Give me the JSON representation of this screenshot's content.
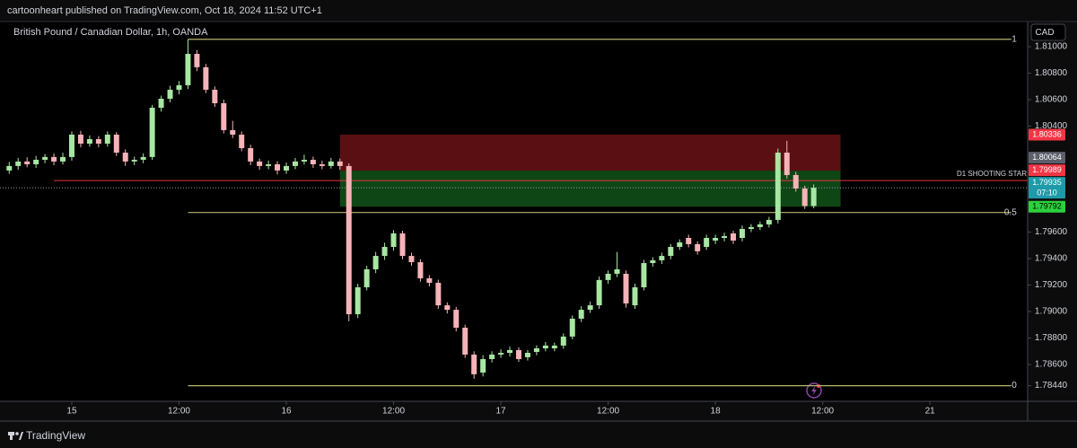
{
  "header": {
    "publisher": "cartoonheart published on TradingView.com, Oct 18, 2024 11:52 UTC+1",
    "currency_button": "CAD",
    "footer_brand": "TradingView"
  },
  "chart_data": {
    "type": "candlestick",
    "title": "British Pound / Canadian Dollar, 1h, OANDA",
    "up_color": "#a8e6a3",
    "down_color": "#f6b3b8",
    "x": [
      -7,
      -6,
      -5,
      -4,
      -3,
      -2,
      -1,
      0,
      1,
      2,
      3,
      4,
      5,
      6,
      7,
      8,
      9,
      10,
      11,
      12,
      13,
      14,
      15,
      16,
      17,
      18,
      19,
      20,
      21,
      22,
      23,
      24,
      25,
      26,
      27,
      28,
      29,
      30,
      31,
      32,
      33,
      34,
      35,
      36,
      37,
      38,
      39,
      40,
      41,
      42,
      43,
      44,
      45,
      46,
      47,
      48,
      49,
      50,
      51,
      52,
      53,
      54,
      55,
      56,
      57,
      58,
      59,
      60,
      61,
      62,
      63,
      64,
      65,
      66,
      67,
      68,
      69,
      70,
      71,
      72,
      73,
      74,
      75,
      76,
      77,
      78,
      79,
      80,
      81,
      82,
      83
    ],
    "open": [
      1.80065,
      1.80099,
      1.80133,
      1.80112,
      1.80146,
      1.80167,
      1.80133,
      1.80167,
      1.80336,
      1.80268,
      1.80302,
      1.80268,
      1.80336,
      1.802,
      1.80133,
      1.80146,
      1.80167,
      1.80539,
      1.80607,
      1.80675,
      1.80709,
      1.80946,
      1.80845,
      1.80675,
      1.80573,
      1.8037,
      1.80336,
      1.80234,
      1.80133,
      1.80099,
      1.80112,
      1.80065,
      1.80099,
      1.80133,
      1.80146,
      1.80112,
      1.80099,
      1.80133,
      1.80099,
      1.7898,
      1.79183,
      1.79319,
      1.7942,
      1.79488,
      1.7959,
      1.7942,
      1.79373,
      1.79251,
      1.79217,
      1.79047,
      1.79013,
      1.78878,
      1.78675,
      1.78539,
      1.78641,
      1.78675,
      1.78688,
      1.78709,
      1.78655,
      1.78695,
      1.78722,
      1.78722,
      1.78743,
      1.78811,
      1.78946,
      1.79013,
      1.79047,
      1.79238,
      1.79285,
      1.79285,
      1.79047,
      1.79183,
      1.79366,
      1.79387,
      1.7942,
      1.79488,
      1.79556,
      1.79509,
      1.79488,
      1.79536,
      1.79556,
      1.7959,
      1.79556,
      1.79624,
      1.79638,
      1.79658,
      1.79692,
      1.802,
      1.80031,
      1.79929,
      1.79797
    ],
    "high": [
      1.8013,
      1.8016,
      1.80165,
      1.80175,
      1.8019,
      1.80195,
      1.802,
      1.8036,
      1.80365,
      1.8033,
      1.80325,
      1.8036,
      1.80355,
      1.80225,
      1.8017,
      1.80195,
      1.8056,
      1.8063,
      1.80705,
      1.8074,
      1.81056,
      1.80975,
      1.8087,
      1.807,
      1.806,
      1.8044,
      1.8036,
      1.8026,
      1.80155,
      1.8014,
      1.80135,
      1.80125,
      1.8016,
      1.80185,
      1.8017,
      1.8014,
      1.8016,
      1.80155,
      1.8012,
      1.7921,
      1.79345,
      1.7945,
      1.7952,
      1.79615,
      1.7961,
      1.79445,
      1.79395,
      1.79275,
      1.7924,
      1.7907,
      1.79035,
      1.789,
      1.787,
      1.7867,
      1.787,
      1.78715,
      1.78735,
      1.7873,
      1.7871,
      1.78745,
      1.7877,
      1.78765,
      1.78835,
      1.7897,
      1.7904,
      1.79075,
      1.79265,
      1.7931,
      1.7945,
      1.7931,
      1.7921,
      1.7939,
      1.7941,
      1.79445,
      1.7951,
      1.79545,
      1.7958,
      1.7953,
      1.7958,
      1.7958,
      1.79595,
      1.7961,
      1.7965,
      1.7966,
      1.7968,
      1.79715,
      1.8023,
      1.80289,
      1.80055,
      1.7995,
      1.7996
    ],
    "low": [
      1.8004,
      1.8007,
      1.8009,
      1.80085,
      1.8012,
      1.80105,
      1.8011,
      1.8014,
      1.8024,
      1.80245,
      1.8024,
      1.80245,
      1.80175,
      1.801,
      1.80105,
      1.8012,
      1.80145,
      1.8051,
      1.8058,
      1.8064,
      1.8068,
      1.80815,
      1.8065,
      1.80545,
      1.80345,
      1.8031,
      1.8021,
      1.80105,
      1.8007,
      1.80075,
      1.80035,
      1.8004,
      1.80075,
      1.8011,
      1.80085,
      1.80075,
      1.8008,
      1.8007,
      1.78926,
      1.7895,
      1.7916,
      1.7929,
      1.7939,
      1.7946,
      1.79395,
      1.79345,
      1.79225,
      1.7919,
      1.7902,
      1.78985,
      1.7885,
      1.7865,
      1.78492,
      1.7851,
      1.78615,
      1.7865,
      1.7866,
      1.7862,
      1.7863,
      1.7867,
      1.787,
      1.787,
      1.7872,
      1.7879,
      1.7892,
      1.7899,
      1.7902,
      1.7921,
      1.7926,
      1.7903,
      1.7902,
      1.7916,
      1.7934,
      1.7936,
      1.79395,
      1.79465,
      1.79485,
      1.7943,
      1.79465,
      1.7951,
      1.7953,
      1.7951,
      1.7953,
      1.796,
      1.79615,
      1.79635,
      1.79665,
      1.80005,
      1.79905,
      1.79775,
      1.7978
    ],
    "close": [
      1.80099,
      1.80133,
      1.80112,
      1.80146,
      1.80167,
      1.80133,
      1.80167,
      1.80336,
      1.80268,
      1.80302,
      1.80268,
      1.80336,
      1.802,
      1.80133,
      1.80146,
      1.80167,
      1.80539,
      1.80607,
      1.80675,
      1.80709,
      1.80946,
      1.80845,
      1.80675,
      1.80573,
      1.8037,
      1.80336,
      1.80234,
      1.80133,
      1.80099,
      1.80112,
      1.80065,
      1.80099,
      1.80133,
      1.80146,
      1.80112,
      1.80099,
      1.80133,
      1.80099,
      1.7898,
      1.79183,
      1.79319,
      1.7942,
      1.79488,
      1.7959,
      1.7942,
      1.79373,
      1.79251,
      1.79217,
      1.79047,
      1.79013,
      1.78878,
      1.78675,
      1.78526,
      1.78641,
      1.78675,
      1.78688,
      1.78709,
      1.78641,
      1.78688,
      1.78722,
      1.78743,
      1.78743,
      1.78811,
      1.78946,
      1.79013,
      1.79047,
      1.79238,
      1.79285,
      1.79319,
      1.79061,
      1.79183,
      1.79366,
      1.79387,
      1.7942,
      1.79488,
      1.79522,
      1.79509,
      1.79455,
      1.79556,
      1.79556,
      1.7957,
      1.79536,
      1.79624,
      1.79638,
      1.79658,
      1.79692,
      1.802,
      1.80031,
      1.79929,
      1.79797,
      1.79935
    ],
    "xlim": [
      -8.03,
      106.93
    ],
    "xticks": [
      {
        "value": 0,
        "label": "15"
      },
      {
        "value": 12,
        "label": "12:00"
      },
      {
        "value": 24,
        "label": "16"
      },
      {
        "value": 36,
        "label": "12:00"
      },
      {
        "value": 48,
        "label": "17"
      },
      {
        "value": 60,
        "label": "12:00"
      },
      {
        "value": 72,
        "label": "18"
      },
      {
        "value": 84,
        "label": "12:00"
      },
      {
        "value": 96,
        "label": "21"
      }
    ],
    "ylim": [
      1.78322,
      1.8119
    ],
    "yticks": [
      {
        "value": 1.81,
        "label": "1.81000"
      },
      {
        "value": 1.808,
        "label": "1.80800"
      },
      {
        "value": 1.806,
        "label": "1.80600"
      },
      {
        "value": 1.804,
        "label": "1.80400"
      },
      {
        "value": 1.796,
        "label": "1.79600"
      },
      {
        "value": 1.794,
        "label": "1.79400"
      },
      {
        "value": 1.792,
        "label": "1.79200"
      },
      {
        "value": 1.79,
        "label": "1.79000"
      },
      {
        "value": 1.788,
        "label": "1.78800"
      },
      {
        "value": 1.786,
        "label": "1.78600"
      },
      {
        "value": 1.7844,
        "label": "1.78440"
      }
    ],
    "zones": [
      {
        "top": 1.80336,
        "bottom": 1.80064,
        "x": [
          30,
          86
        ],
        "color": "#5a1012"
      },
      {
        "top": 1.80064,
        "bottom": 1.79792,
        "x": [
          30,
          86
        ],
        "color": "#0f4616"
      }
    ],
    "fib": {
      "color": "#b7b46e",
      "x": [
        13,
        105.1
      ],
      "levels": [
        {
          "level": 1,
          "price": 1.81056
        },
        {
          "level": 0.5,
          "price": 1.79748
        },
        {
          "level": 0,
          "price": 1.7844
        }
      ]
    },
    "annotation": {
      "text": "D1 SHOOTING STAR",
      "price": 1.79989,
      "x_start": -2,
      "color": "#e8343c"
    },
    "price_tags": [
      {
        "value": 1.80336,
        "color": "#f23645",
        "text_color": "#ffffff"
      },
      {
        "value": 1.80064,
        "color": "#5d606b",
        "text_color": "#ffffff"
      },
      {
        "value": 1.79989,
        "color": "#f23645",
        "text_color": "#ffffff"
      },
      {
        "value": 1.79935,
        "countdown": "07:10",
        "color": "#1e9aa8",
        "text_color": "#ffffff",
        "current": true
      },
      {
        "value": 1.79792,
        "color": "#2bd13d",
        "text_color": "#000000"
      }
    ]
  }
}
